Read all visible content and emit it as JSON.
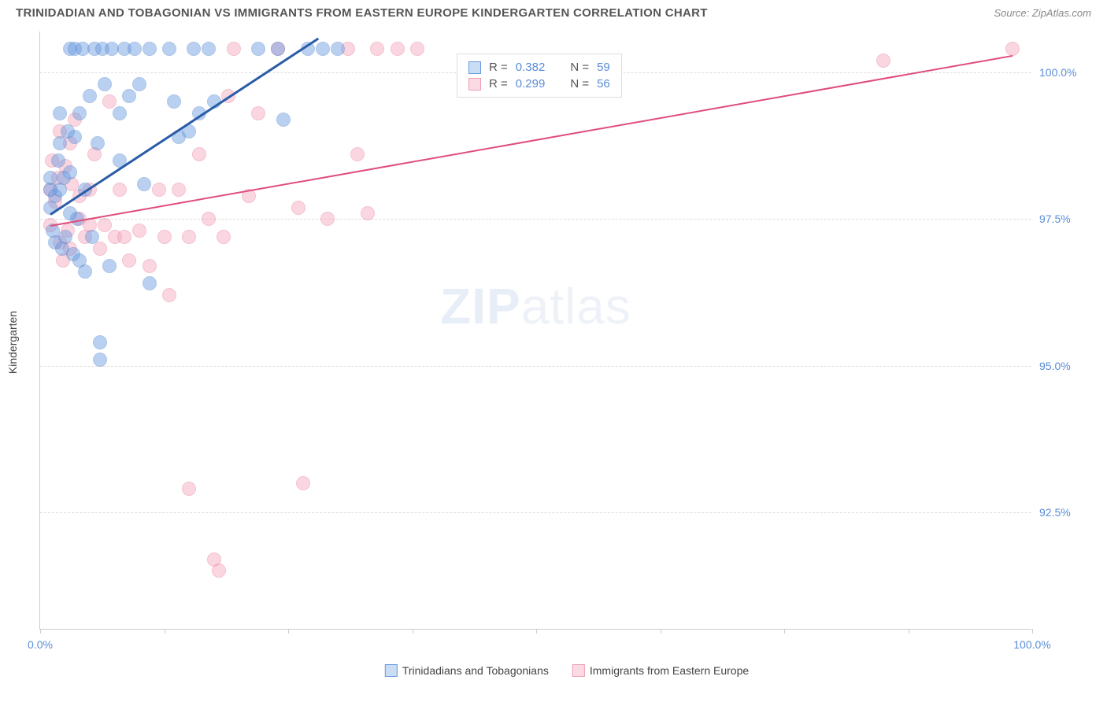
{
  "header": {
    "title": "TRINIDADIAN AND TOBAGONIAN VS IMMIGRANTS FROM EASTERN EUROPE KINDERGARTEN CORRELATION CHART",
    "source_prefix": "Source: ",
    "source_name": "ZipAtlas.com"
  },
  "watermark": {
    "part1": "ZIP",
    "part2": "atlas"
  },
  "chart": {
    "type": "scatter",
    "ylabel": "Kindergarten",
    "background_color": "#ffffff",
    "grid_color": "#dddddd",
    "axis_color": "#cccccc",
    "value_color": "#5a8dd8",
    "text_color": "#555555",
    "xlim": [
      0,
      100
    ],
    "ylim": [
      90.5,
      100.7
    ],
    "yticks": [
      {
        "value": 92.5,
        "label": "92.5%"
      },
      {
        "value": 95.0,
        "label": "95.0%"
      },
      {
        "value": 97.5,
        "label": "97.5%"
      },
      {
        "value": 100.0,
        "label": "100.0%"
      }
    ],
    "xticks": [
      0,
      12.5,
      25,
      37.5,
      50,
      62.5,
      75,
      87.5,
      100
    ],
    "xtick_labels": [
      {
        "value": 0,
        "label": "0.0%"
      },
      {
        "value": 100,
        "label": "100.0%"
      }
    ],
    "marker_radius": 9,
    "marker_opacity": 0.45,
    "series": [
      {
        "name": "Trinidadians and Tobagonians",
        "color": "#6699e0",
        "border_color": "#4a7fc9",
        "R": "0.382",
        "N": "59",
        "trend": {
          "x1": 1,
          "y1": 97.6,
          "x2": 28,
          "y2": 100.6,
          "color": "#2a5ca8",
          "width": 2.5
        },
        "points": [
          [
            1,
            97.7
          ],
          [
            1,
            98.0
          ],
          [
            1,
            98.2
          ],
          [
            1.3,
            97.3
          ],
          [
            1.5,
            97.1
          ],
          [
            1.5,
            97.9
          ],
          [
            1.8,
            98.5
          ],
          [
            2,
            98.0
          ],
          [
            2,
            98.8
          ],
          [
            2,
            99.3
          ],
          [
            2.2,
            97.0
          ],
          [
            2.4,
            98.2
          ],
          [
            2.5,
            97.2
          ],
          [
            2.8,
            99.0
          ],
          [
            3,
            97.6
          ],
          [
            3,
            98.3
          ],
          [
            3,
            100.4
          ],
          [
            3.3,
            96.9
          ],
          [
            3.5,
            98.9
          ],
          [
            3.5,
            100.4
          ],
          [
            3.7,
            97.5
          ],
          [
            4,
            96.8
          ],
          [
            4,
            99.3
          ],
          [
            4.3,
            100.4
          ],
          [
            4.5,
            98.0
          ],
          [
            4.5,
            96.6
          ],
          [
            5,
            99.6
          ],
          [
            5.2,
            97.2
          ],
          [
            5.5,
            100.4
          ],
          [
            5.8,
            98.8
          ],
          [
            6,
            95.4
          ],
          [
            6,
            95.1
          ],
          [
            6.3,
            100.4
          ],
          [
            6.5,
            99.8
          ],
          [
            7,
            96.7
          ],
          [
            7.2,
            100.4
          ],
          [
            8,
            98.5
          ],
          [
            8,
            99.3
          ],
          [
            8.5,
            100.4
          ],
          [
            9,
            99.6
          ],
          [
            9.5,
            100.4
          ],
          [
            10,
            99.8
          ],
          [
            10.5,
            98.1
          ],
          [
            11,
            100.4
          ],
          [
            11,
            96.4
          ],
          [
            13,
            100.4
          ],
          [
            13.5,
            99.5
          ],
          [
            14,
            98.9
          ],
          [
            15,
            99.0
          ],
          [
            15.5,
            100.4
          ],
          [
            16,
            99.3
          ],
          [
            17,
            100.4
          ],
          [
            17.5,
            99.5
          ],
          [
            22,
            100.4
          ],
          [
            24,
            100.4
          ],
          [
            24.5,
            99.2
          ],
          [
            27,
            100.4
          ],
          [
            28.5,
            100.4
          ],
          [
            30,
            100.4
          ]
        ]
      },
      {
        "name": "Immigrants from Eastern Europe",
        "color": "#f4a6bb",
        "border_color": "#e77a98",
        "R": "0.299",
        "N": "56",
        "trend": {
          "x1": 1,
          "y1": 97.4,
          "x2": 98,
          "y2": 100.3,
          "color": "#e04d7a",
          "width": 2
        },
        "points": [
          [
            1,
            97.4
          ],
          [
            1,
            98.0
          ],
          [
            1.2,
            98.5
          ],
          [
            1.5,
            97.8
          ],
          [
            1.8,
            98.2
          ],
          [
            2,
            99.0
          ],
          [
            2,
            97.1
          ],
          [
            2.3,
            96.8
          ],
          [
            2.5,
            98.4
          ],
          [
            2.8,
            97.3
          ],
          [
            3,
            98.8
          ],
          [
            3,
            97.0
          ],
          [
            3.2,
            98.1
          ],
          [
            3.5,
            99.2
          ],
          [
            4,
            97.5
          ],
          [
            4,
            97.9
          ],
          [
            4.5,
            97.2
          ],
          [
            5,
            98.0
          ],
          [
            5,
            97.4
          ],
          [
            5.5,
            98.6
          ],
          [
            6,
            97.0
          ],
          [
            6.5,
            97.4
          ],
          [
            7,
            99.5
          ],
          [
            7.5,
            97.2
          ],
          [
            8,
            98.0
          ],
          [
            8.5,
            97.2
          ],
          [
            9,
            96.8
          ],
          [
            10,
            97.3
          ],
          [
            11,
            96.7
          ],
          [
            12,
            98.0
          ],
          [
            12.5,
            97.2
          ],
          [
            13,
            96.2
          ],
          [
            14,
            98.0
          ],
          [
            15,
            97.2
          ],
          [
            15,
            92.9
          ],
          [
            16,
            98.6
          ],
          [
            17,
            97.5
          ],
          [
            17.5,
            91.7
          ],
          [
            18,
            91.5
          ],
          [
            18.5,
            97.2
          ],
          [
            19,
            99.6
          ],
          [
            19.5,
            100.4
          ],
          [
            21,
            97.9
          ],
          [
            22,
            99.3
          ],
          [
            24,
            100.4
          ],
          [
            26,
            97.7
          ],
          [
            26.5,
            93.0
          ],
          [
            29,
            97.5
          ],
          [
            31,
            100.4
          ],
          [
            32,
            98.6
          ],
          [
            33,
            97.6
          ],
          [
            34,
            100.4
          ],
          [
            36,
            100.4
          ],
          [
            38,
            100.4
          ],
          [
            85,
            100.2
          ],
          [
            98,
            100.4
          ]
        ]
      }
    ],
    "legend_bottom": [
      {
        "label": "Trinidadians and Tobagonians",
        "fill": "#c9ddf4",
        "border": "#6699e0"
      },
      {
        "label": "Immigrants from Eastern Europe",
        "fill": "#fbdbe3",
        "border": "#f09cb3"
      }
    ],
    "stats_box": {
      "rows": [
        {
          "swatch_fill": "#c9ddf4",
          "swatch_border": "#6699e0",
          "r_label": "R =",
          "r_val": "0.382",
          "n_label": "N =",
          "n_val": "59"
        },
        {
          "swatch_fill": "#fbdbe3",
          "swatch_border": "#f09cb3",
          "r_label": "R =",
          "r_val": "0.299",
          "n_label": "N =",
          "n_val": "56"
        }
      ]
    }
  }
}
